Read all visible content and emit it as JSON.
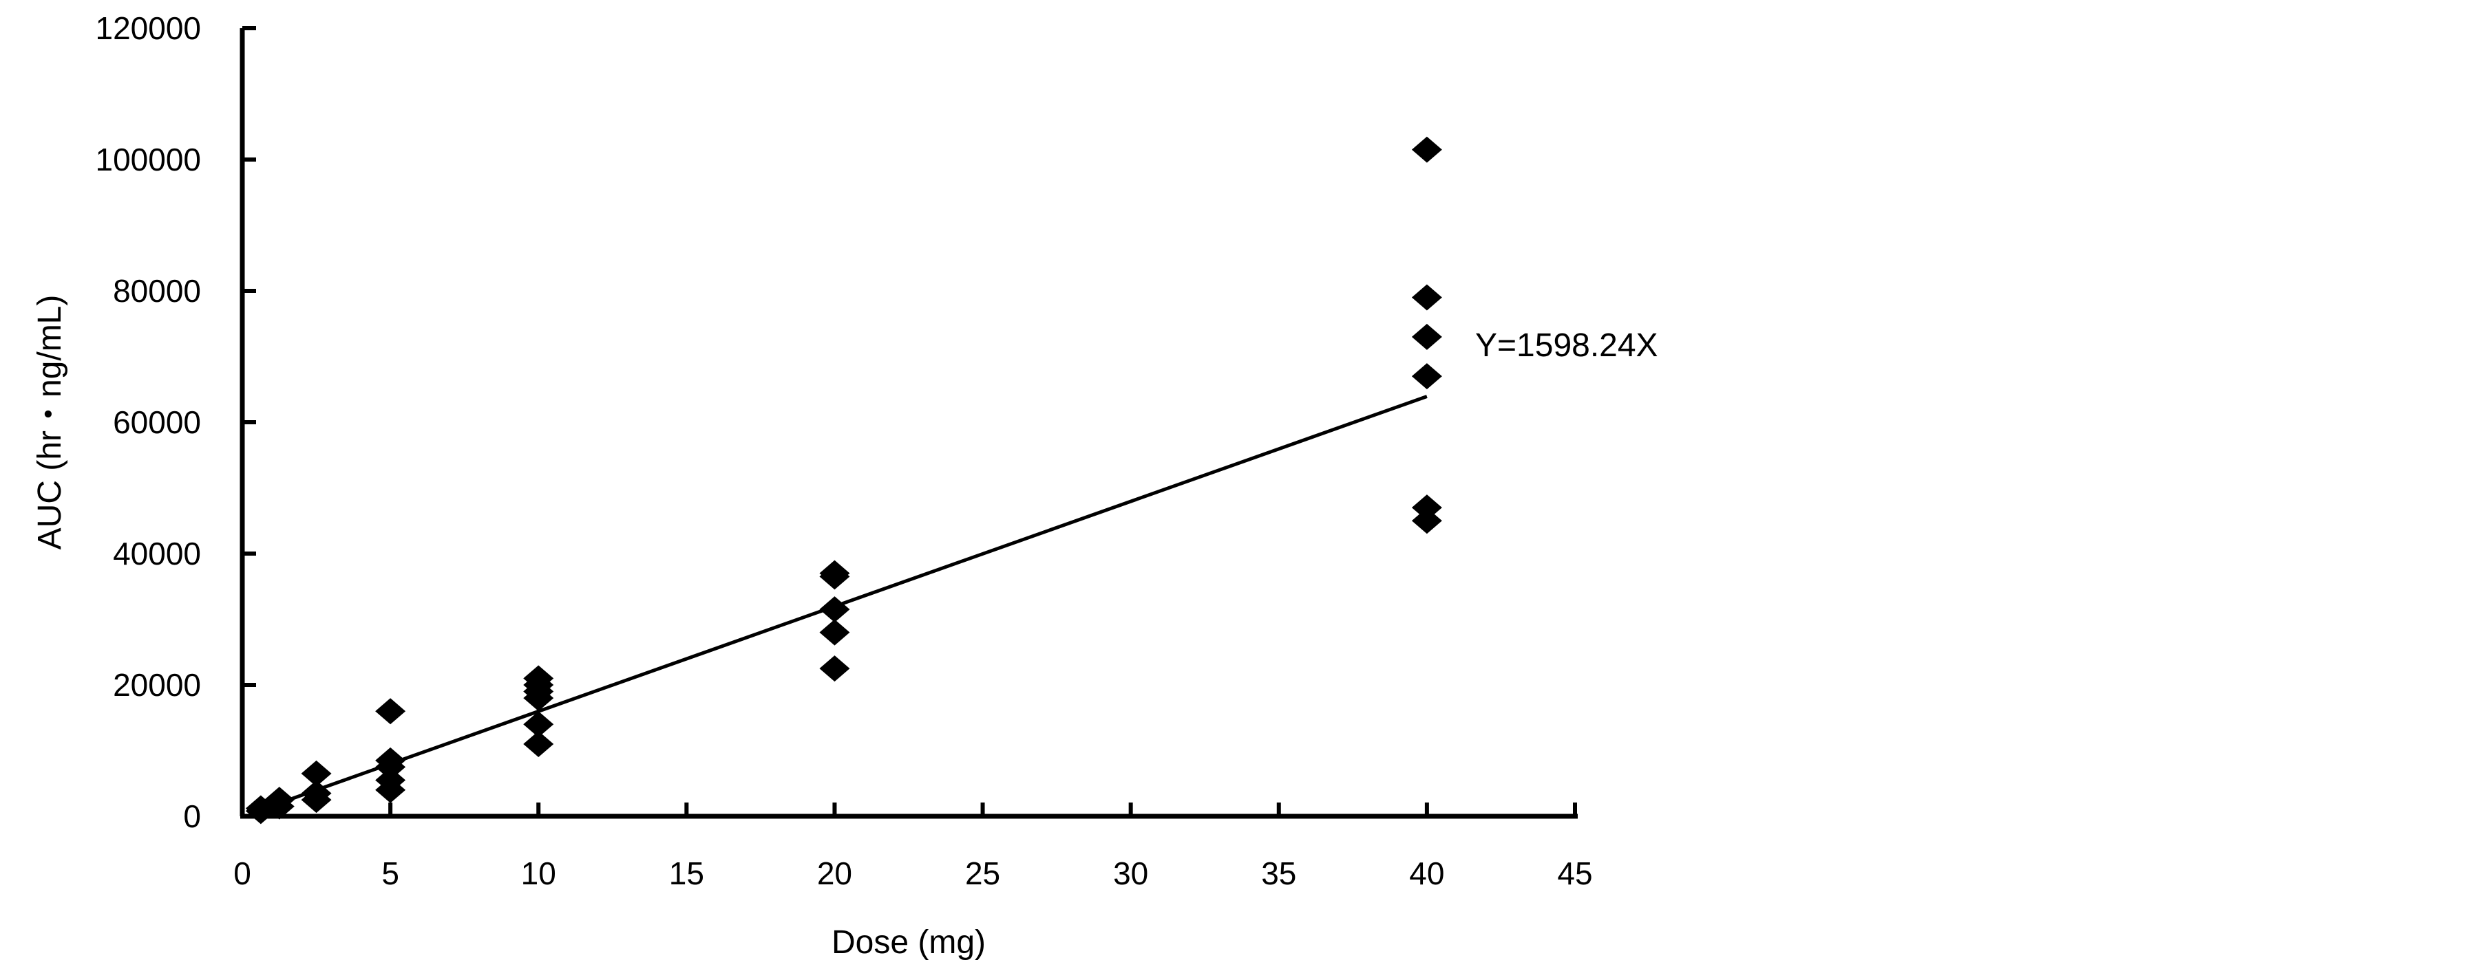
{
  "chart_data": {
    "type": "scatter",
    "title": "",
    "xlabel": "Dose (mg)",
    "ylabel": "AUC (hr・ng/mL)",
    "xlim": [
      0,
      45
    ],
    "ylim": [
      0,
      120000
    ],
    "xticks": [
      "0",
      "5",
      "10",
      "15",
      "20",
      "25",
      "30",
      "35",
      "40",
      "45"
    ],
    "yticks": [
      "0",
      "20000",
      "40000",
      "60000",
      "80000",
      "100000",
      "120000"
    ],
    "grid": false,
    "marker": "diamond",
    "marker_color": "#000000",
    "points": [
      [
        0.625,
        800
      ],
      [
        0.625,
        1200
      ],
      [
        1.25,
        1500
      ],
      [
        1.25,
        2500
      ],
      [
        2.5,
        2500
      ],
      [
        2.5,
        3500
      ],
      [
        2.5,
        6500
      ],
      [
        5,
        4000
      ],
      [
        5,
        5500
      ],
      [
        5,
        7500
      ],
      [
        5,
        8500
      ],
      [
        5,
        16000
      ],
      [
        10,
        11000
      ],
      [
        10,
        14000
      ],
      [
        10,
        18000
      ],
      [
        10,
        19000
      ],
      [
        10,
        20000
      ],
      [
        10,
        21000
      ],
      [
        20,
        22500
      ],
      [
        20,
        28000
      ],
      [
        20,
        31500
      ],
      [
        20,
        36500
      ],
      [
        20,
        37000
      ],
      [
        40,
        45000
      ],
      [
        40,
        47000
      ],
      [
        40,
        67000
      ],
      [
        40,
        73000
      ],
      [
        40,
        79000
      ],
      [
        40,
        101500
      ]
    ],
    "fit_line": {
      "slope": 1598.24,
      "x_range": [
        0.625,
        40
      ],
      "label": "Y=1598.24X"
    }
  }
}
